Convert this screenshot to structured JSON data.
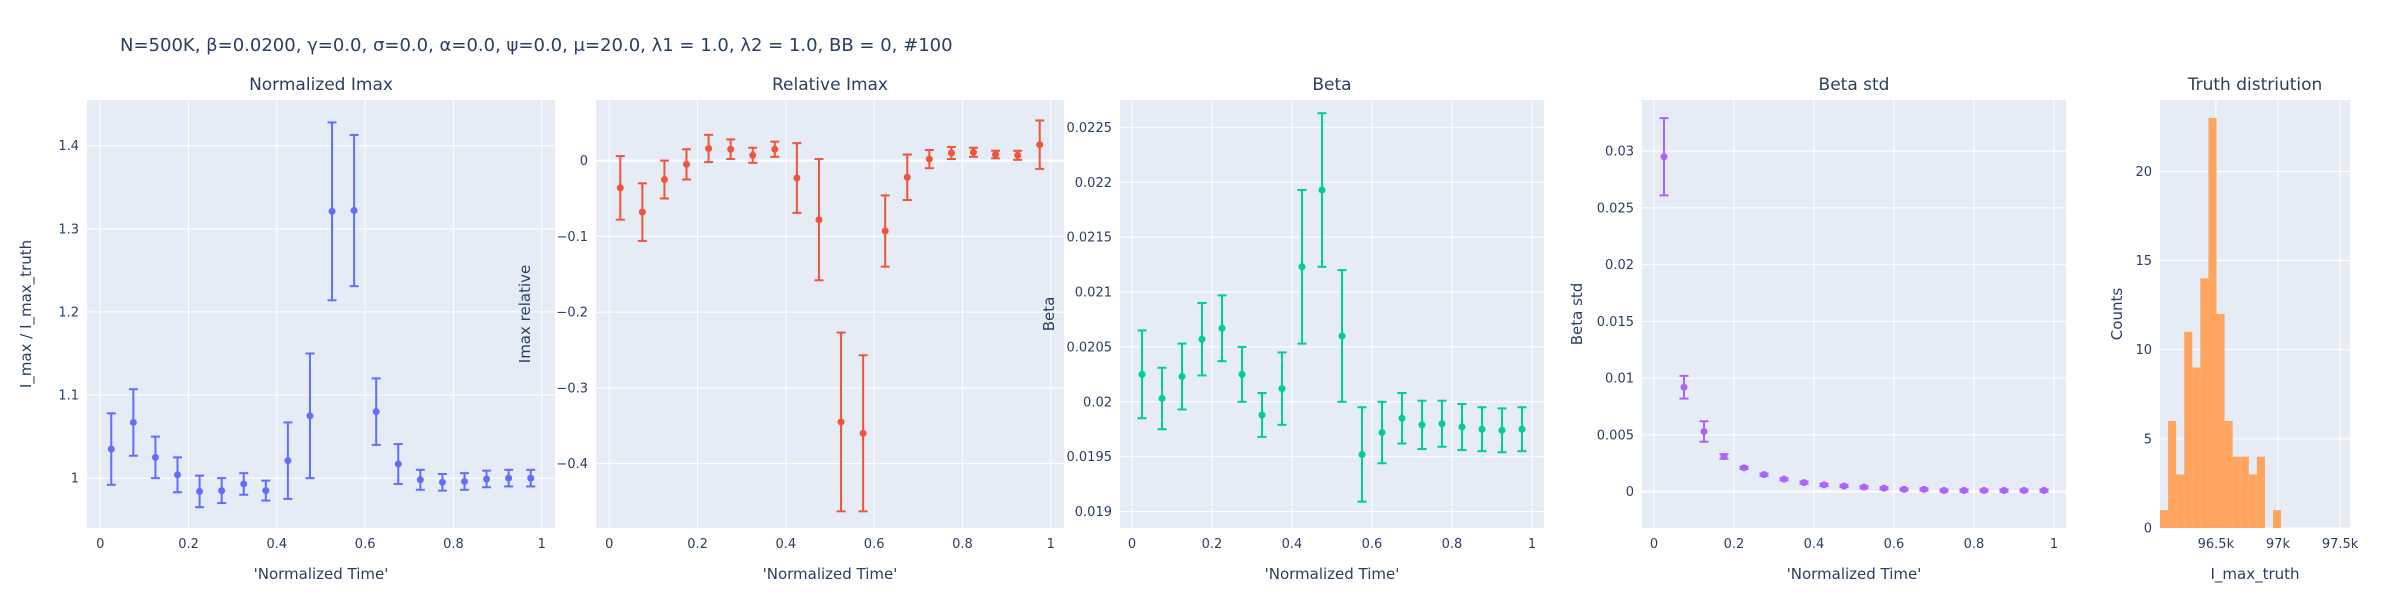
{
  "suptitle": "N=500K, β=0.0200, γ=0.0, σ=0.0,  α=0.0, ψ=0.0, μ=20.0, λ1 = 1.0, λ2 = 1.0, BB = 0, #100",
  "chart_data": [
    {
      "type": "scatter",
      "title": "Normalized Imax",
      "xlabel": "'Normalized Time'",
      "ylabel": "I_max / I_max_truth",
      "color": "#636efa",
      "xlim": [
        -0.03,
        1.03
      ],
      "ylim": [
        0.94,
        1.455
      ],
      "x_ticks": [
        {
          "v": 0,
          "label": "0"
        },
        {
          "v": 0.2,
          "label": "0.2"
        },
        {
          "v": 0.4,
          "label": "0.4"
        },
        {
          "v": 0.6,
          "label": "0.6"
        },
        {
          "v": 0.8,
          "label": "0.8"
        },
        {
          "v": 1,
          "label": "1"
        }
      ],
      "y_ticks": [
        {
          "v": 1,
          "label": "1"
        },
        {
          "v": 1.1,
          "label": "1.1"
        },
        {
          "v": 1.2,
          "label": "1.2"
        },
        {
          "v": 1.3,
          "label": "1.3"
        },
        {
          "v": 1.4,
          "label": "1.4"
        }
      ],
      "points": [
        {
          "x": 0.025,
          "y": 1.035,
          "err": 0.043
        },
        {
          "x": 0.075,
          "y": 1.067,
          "err": 0.04
        },
        {
          "x": 0.125,
          "y": 1.025,
          "err": 0.025
        },
        {
          "x": 0.175,
          "y": 1.004,
          "err": 0.021
        },
        {
          "x": 0.225,
          "y": 0.984,
          "err": 0.019
        },
        {
          "x": 0.275,
          "y": 0.985,
          "err": 0.015
        },
        {
          "x": 0.325,
          "y": 0.993,
          "err": 0.013
        },
        {
          "x": 0.375,
          "y": 0.985,
          "err": 0.012
        },
        {
          "x": 0.425,
          "y": 1.021,
          "err": 0.046
        },
        {
          "x": 0.475,
          "y": 1.075,
          "err": 0.075
        },
        {
          "x": 0.525,
          "y": 1.321,
          "err": 0.107
        },
        {
          "x": 0.575,
          "y": 1.322,
          "err": 0.091
        },
        {
          "x": 0.625,
          "y": 1.08,
          "err": 0.04
        },
        {
          "x": 0.675,
          "y": 1.017,
          "err": 0.024
        },
        {
          "x": 0.725,
          "y": 0.998,
          "err": 0.012
        },
        {
          "x": 0.775,
          "y": 0.995,
          "err": 0.01
        },
        {
          "x": 0.825,
          "y": 0.996,
          "err": 0.01
        },
        {
          "x": 0.875,
          "y": 0.999,
          "err": 0.01
        },
        {
          "x": 0.925,
          "y": 1.0,
          "err": 0.01
        },
        {
          "x": 0.975,
          "y": 1.0,
          "err": 0.01
        }
      ]
    },
    {
      "type": "scatter",
      "title": "Relative Imax",
      "xlabel": "'Normalized Time'",
      "ylabel": "Imax relative",
      "color": "#ef553b",
      "xlim": [
        -0.03,
        1.03
      ],
      "ylim": [
        -0.485,
        0.08
      ],
      "x_ticks": [
        {
          "v": 0,
          "label": "0"
        },
        {
          "v": 0.2,
          "label": "0.2"
        },
        {
          "v": 0.4,
          "label": "0.4"
        },
        {
          "v": 0.6,
          "label": "0.6"
        },
        {
          "v": 0.8,
          "label": "0.8"
        },
        {
          "v": 1,
          "label": "1"
        }
      ],
      "y_ticks": [
        {
          "v": 0,
          "label": "0"
        },
        {
          "v": -0.1,
          "label": "−0.1"
        },
        {
          "v": -0.2,
          "label": "−0.2"
        },
        {
          "v": -0.3,
          "label": "−0.3"
        },
        {
          "v": -0.4,
          "label": "−0.4"
        }
      ],
      "points": [
        {
          "x": 0.025,
          "y": -0.036,
          "err": 0.042
        },
        {
          "x": 0.075,
          "y": -0.068,
          "err": 0.038
        },
        {
          "x": 0.125,
          "y": -0.025,
          "err": 0.025
        },
        {
          "x": 0.175,
          "y": -0.005,
          "err": 0.02
        },
        {
          "x": 0.225,
          "y": 0.016,
          "err": 0.018
        },
        {
          "x": 0.275,
          "y": 0.015,
          "err": 0.013
        },
        {
          "x": 0.325,
          "y": 0.007,
          "err": 0.01
        },
        {
          "x": 0.375,
          "y": 0.015,
          "err": 0.01
        },
        {
          "x": 0.425,
          "y": -0.023,
          "err": 0.046
        },
        {
          "x": 0.475,
          "y": -0.078,
          "err": 0.08
        },
        {
          "x": 0.525,
          "y": -0.345,
          "err": 0.118
        },
        {
          "x": 0.575,
          "y": -0.36,
          "err": 0.103
        },
        {
          "x": 0.625,
          "y": -0.093,
          "err": 0.047
        },
        {
          "x": 0.675,
          "y": -0.022,
          "err": 0.03
        },
        {
          "x": 0.725,
          "y": 0.002,
          "err": 0.012
        },
        {
          "x": 0.775,
          "y": 0.01,
          "err": 0.008
        },
        {
          "x": 0.825,
          "y": 0.011,
          "err": 0.006
        },
        {
          "x": 0.875,
          "y": 0.008,
          "err": 0.005
        },
        {
          "x": 0.925,
          "y": 0.007,
          "err": 0.006
        },
        {
          "x": 0.975,
          "y": 0.021,
          "err": 0.032
        }
      ]
    },
    {
      "type": "scatter",
      "title": "Beta",
      "xlabel": "'Normalized Time'",
      "ylabel": "Beta",
      "color": "#00cc96",
      "xlim": [
        -0.03,
        1.03
      ],
      "ylim": [
        0.01885,
        0.02275
      ],
      "x_ticks": [
        {
          "v": 0,
          "label": "0"
        },
        {
          "v": 0.2,
          "label": "0.2"
        },
        {
          "v": 0.4,
          "label": "0.4"
        },
        {
          "v": 0.6,
          "label": "0.6"
        },
        {
          "v": 0.8,
          "label": "0.8"
        },
        {
          "v": 1,
          "label": "1"
        }
      ],
      "y_ticks": [
        {
          "v": 0.019,
          "label": "0.019"
        },
        {
          "v": 0.0195,
          "label": "0.0195"
        },
        {
          "v": 0.02,
          "label": "0.02"
        },
        {
          "v": 0.0205,
          "label": "0.0205"
        },
        {
          "v": 0.021,
          "label": "0.021"
        },
        {
          "v": 0.0215,
          "label": "0.0215"
        },
        {
          "v": 0.022,
          "label": "0.022"
        },
        {
          "v": 0.0225,
          "label": "0.0225"
        }
      ],
      "points": [
        {
          "x": 0.025,
          "y": 0.02025,
          "err": 0.0004
        },
        {
          "x": 0.075,
          "y": 0.02003,
          "err": 0.00028
        },
        {
          "x": 0.125,
          "y": 0.02023,
          "err": 0.0003
        },
        {
          "x": 0.175,
          "y": 0.02057,
          "err": 0.00033
        },
        {
          "x": 0.225,
          "y": 0.02067,
          "err": 0.0003
        },
        {
          "x": 0.275,
          "y": 0.02025,
          "err": 0.00025
        },
        {
          "x": 0.325,
          "y": 0.01988,
          "err": 0.0002
        },
        {
          "x": 0.375,
          "y": 0.02012,
          "err": 0.00033
        },
        {
          "x": 0.425,
          "y": 0.02123,
          "err": 0.0007
        },
        {
          "x": 0.475,
          "y": 0.02193,
          "err": 0.0007
        },
        {
          "x": 0.525,
          "y": 0.0206,
          "err": 0.0006
        },
        {
          "x": 0.575,
          "y": 0.01952,
          "err": 0.00043
        },
        {
          "x": 0.625,
          "y": 0.01972,
          "err": 0.00028
        },
        {
          "x": 0.675,
          "y": 0.01985,
          "err": 0.00023
        },
        {
          "x": 0.725,
          "y": 0.01979,
          "err": 0.00022
        },
        {
          "x": 0.775,
          "y": 0.0198,
          "err": 0.00021
        },
        {
          "x": 0.825,
          "y": 0.01977,
          "err": 0.00021
        },
        {
          "x": 0.875,
          "y": 0.01975,
          "err": 0.0002
        },
        {
          "x": 0.925,
          "y": 0.01974,
          "err": 0.0002
        },
        {
          "x": 0.975,
          "y": 0.01975,
          "err": 0.0002
        }
      ]
    },
    {
      "type": "scatter",
      "title": "Beta std",
      "xlabel": "'Normalized Time'",
      "ylabel": "Beta std",
      "color": "#ab63fa",
      "xlim": [
        -0.03,
        1.03
      ],
      "ylim": [
        -0.0032,
        0.0345
      ],
      "x_ticks": [
        {
          "v": 0,
          "label": "0"
        },
        {
          "v": 0.2,
          "label": "0.2"
        },
        {
          "v": 0.4,
          "label": "0.4"
        },
        {
          "v": 0.6,
          "label": "0.6"
        },
        {
          "v": 0.8,
          "label": "0.8"
        },
        {
          "v": 1,
          "label": "1"
        }
      ],
      "y_ticks": [
        {
          "v": 0,
          "label": "0"
        },
        {
          "v": 0.005,
          "label": "0.005"
        },
        {
          "v": 0.01,
          "label": "0.01"
        },
        {
          "v": 0.015,
          "label": "0.015"
        },
        {
          "v": 0.02,
          "label": "0.02"
        },
        {
          "v": 0.025,
          "label": "0.025"
        },
        {
          "v": 0.03,
          "label": "0.03"
        }
      ],
      "points": [
        {
          "x": 0.025,
          "y": 0.0295,
          "err": 0.0034
        },
        {
          "x": 0.075,
          "y": 0.0092,
          "err": 0.001
        },
        {
          "x": 0.125,
          "y": 0.0053,
          "err": 0.0009
        },
        {
          "x": 0.175,
          "y": 0.0031,
          "err": 0.0002
        },
        {
          "x": 0.225,
          "y": 0.0021,
          "err": 0.0001
        },
        {
          "x": 0.275,
          "y": 0.0015,
          "err": 0.0001
        },
        {
          "x": 0.325,
          "y": 0.0011,
          "err": 0.0001
        },
        {
          "x": 0.375,
          "y": 0.0008,
          "err": 0.0001
        },
        {
          "x": 0.425,
          "y": 0.0006,
          "err": 0.0001
        },
        {
          "x": 0.475,
          "y": 0.0005,
          "err": 0.0001
        },
        {
          "x": 0.525,
          "y": 0.0004,
          "err": 0.0001
        },
        {
          "x": 0.575,
          "y": 0.0003,
          "err": 0.0001
        },
        {
          "x": 0.625,
          "y": 0.0002,
          "err": 0.0001
        },
        {
          "x": 0.675,
          "y": 0.0002,
          "err": 0.0001
        },
        {
          "x": 0.725,
          "y": 0.0001,
          "err": 0.0001
        },
        {
          "x": 0.775,
          "y": 0.0001,
          "err": 0.0001
        },
        {
          "x": 0.825,
          "y": 0.0001,
          "err": 0.0001
        },
        {
          "x": 0.875,
          "y": 0.0001,
          "err": 0.0001
        },
        {
          "x": 0.925,
          "y": 0.0001,
          "err": 0.0001
        },
        {
          "x": 0.975,
          "y": 0.0001,
          "err": 0.0001
        }
      ]
    },
    {
      "type": "bar",
      "title": "Truth distriution",
      "xlabel": "I_max_truth",
      "ylabel": "Counts",
      "color": "#ffa15a",
      "xlim": [
        96050,
        97580
      ],
      "ylim": [
        0,
        24
      ],
      "bin_width": 65,
      "x_ticks": [
        {
          "v": 96500,
          "label": "96.5k"
        },
        {
          "v": 97000,
          "label": "97k"
        },
        {
          "v": 97500,
          "label": "97.5k"
        }
      ],
      "y_ticks": [
        {
          "v": 0,
          "label": "0"
        },
        {
          "v": 5,
          "label": "5"
        },
        {
          "v": 10,
          "label": "10"
        },
        {
          "v": 15,
          "label": "15"
        },
        {
          "v": 20,
          "label": "20"
        }
      ],
      "bins": [
        {
          "x0": 96050,
          "count": 1
        },
        {
          "x0": 96115,
          "count": 6
        },
        {
          "x0": 96180,
          "count": 3
        },
        {
          "x0": 96245,
          "count": 11
        },
        {
          "x0": 96310,
          "count": 9
        },
        {
          "x0": 96375,
          "count": 14
        },
        {
          "x0": 96440,
          "count": 23
        },
        {
          "x0": 96505,
          "count": 12
        },
        {
          "x0": 96570,
          "count": 6
        },
        {
          "x0": 96635,
          "count": 4
        },
        {
          "x0": 96700,
          "count": 4
        },
        {
          "x0": 96765,
          "count": 3
        },
        {
          "x0": 96830,
          "count": 4
        },
        {
          "x0": 96895,
          "count": 0
        },
        {
          "x0": 96960,
          "count": 1
        }
      ]
    }
  ]
}
